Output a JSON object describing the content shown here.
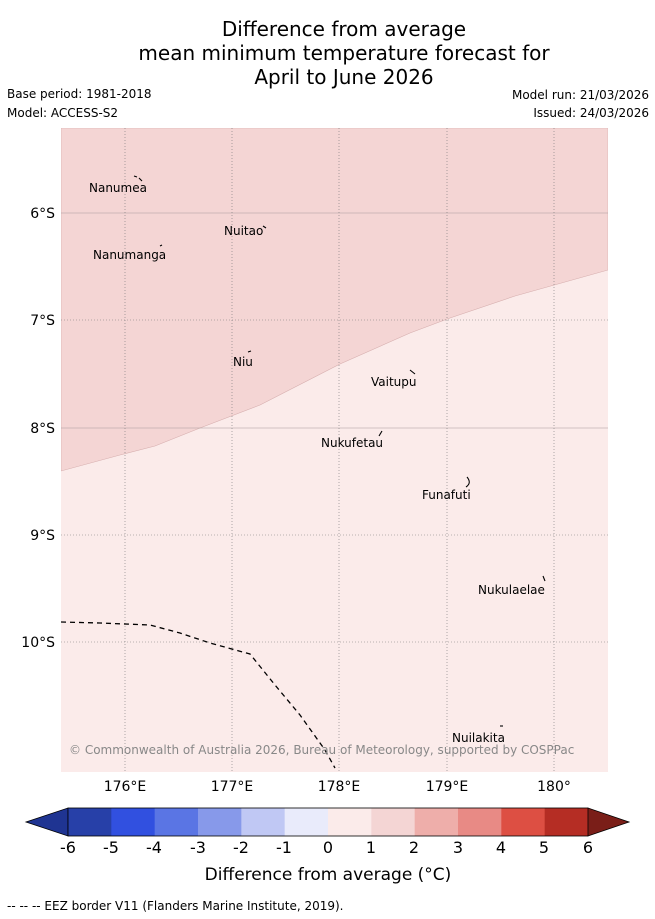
{
  "header": {
    "title_lines": [
      "Difference from average",
      "mean minimum temperature forecast for",
      "April to June 2026"
    ],
    "base_period": "Base period: 1981-2018",
    "model": "Model: ACCESS-S2",
    "model_run": "Model run: 21/03/2026",
    "issued": "Issued: 24/03/2026"
  },
  "map": {
    "lat_labels": [
      "6°S",
      "7°S",
      "8°S",
      "9°S",
      "10°S"
    ],
    "lon_labels": [
      "176°E",
      "177°E",
      "178°E",
      "179°E",
      "180°"
    ],
    "regions": [
      {
        "name": "anomaly 1 to 2",
        "color": "#f4d5d4"
      },
      {
        "name": "anomaly 0 to 1",
        "color": "#fbebea"
      }
    ],
    "islands": [
      "Nanumea",
      "Nuitao",
      "Nanumanga",
      "Niu",
      "Vaitupu",
      "Nukufetau",
      "Funafuti",
      "Nukulaelae",
      "Nuilakita"
    ],
    "copyright": "© Commonwealth of Australia 2026, Bureau of Meteorology, supported by COSPPac"
  },
  "colorbar": {
    "tick_labels": [
      "-6",
      "-5",
      "-4",
      "-3",
      "-2",
      "-1",
      "0",
      "1",
      "2",
      "3",
      "4",
      "5",
      "6"
    ],
    "colors": [
      "#2740a8",
      "#3150e0",
      "#5a75e4",
      "#8799ea",
      "#c0c8f4",
      "#e9ebfb",
      "#fbebea",
      "#f4d5d4",
      "#eeaeaa",
      "#e88a85",
      "#dd4f43",
      "#b52d24"
    ],
    "arrow_low_color": "#1f3492",
    "arrow_high_color": "#7a1e18",
    "title": "Difference from average (°C)"
  },
  "legend": {
    "eez_line": "-- -- -- EEZ border V11 (Flanders Marine Institute, 2019)."
  }
}
